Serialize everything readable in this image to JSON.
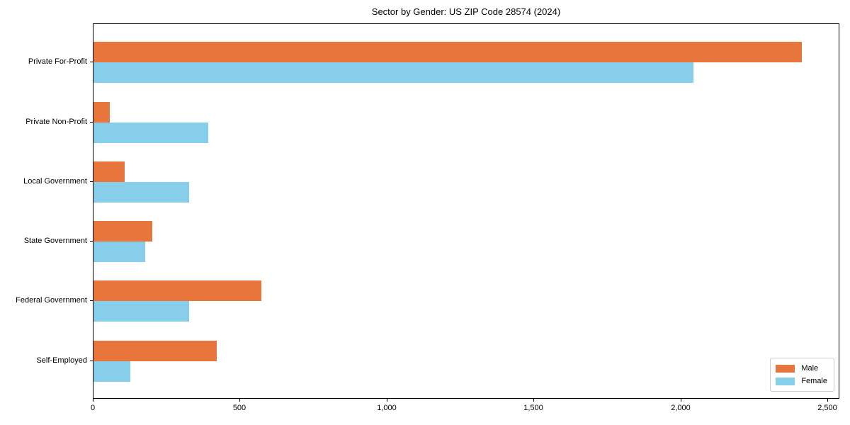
{
  "chart_data": {
    "type": "bar",
    "orientation": "horizontal",
    "title": "Sector by Gender: US ZIP Code 28574 (2024)",
    "categories": [
      "Private For-Profit",
      "Private Non-Profit",
      "Local Government",
      "State Government",
      "Federal Government",
      "Self-Employed"
    ],
    "series": [
      {
        "name": "Male",
        "color": "#E8763C",
        "values": [
          2410,
          55,
          105,
          200,
          570,
          420
        ]
      },
      {
        "name": "Female",
        "color": "#87CEEB",
        "values": [
          2040,
          390,
          325,
          175,
          325,
          125
        ]
      }
    ],
    "xlim": [
      0,
      2540
    ],
    "x_ticks": [
      0,
      500,
      1000,
      1500,
      2000,
      2500
    ],
    "x_tick_labels": [
      "0",
      "500",
      "1,000",
      "1,500",
      "2,000",
      "2,500"
    ],
    "xlabel": "",
    "ylabel": "",
    "grid": false,
    "legend_position": "lower right"
  },
  "colors": {
    "background": "#ffffff",
    "axis": "#000000",
    "legend_border": "#cccccc",
    "male": "#E8763C",
    "female": "#87CEEB"
  }
}
